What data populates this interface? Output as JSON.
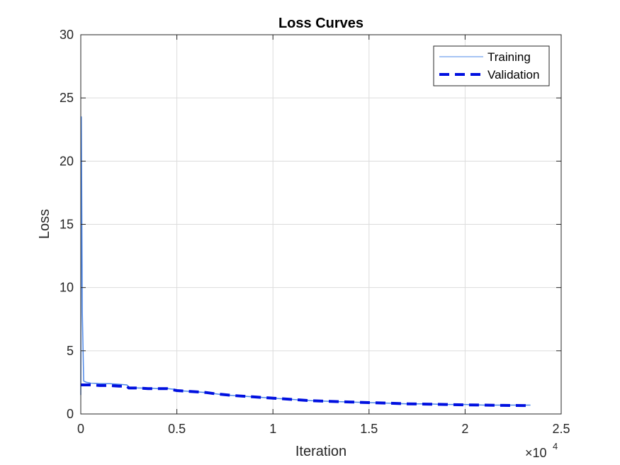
{
  "chart_data": {
    "type": "line",
    "title": "Loss Curves",
    "xlabel": "Iteration",
    "ylabel": "Loss",
    "x_exponent_label": "×10",
    "x_exponent_power": "4",
    "xlim": [
      0,
      25000
    ],
    "ylim": [
      0,
      30
    ],
    "x_ticks": [
      0,
      5000,
      10000,
      15000,
      20000,
      25000
    ],
    "x_tick_labels": [
      "0",
      "0.5",
      "1",
      "1.5",
      "2",
      "2.5"
    ],
    "y_ticks": [
      0,
      5,
      10,
      15,
      20,
      25,
      30
    ],
    "y_tick_labels": [
      "0",
      "5",
      "10",
      "15",
      "20",
      "25",
      "30"
    ],
    "grid": true,
    "legend_position": "top-right",
    "series": [
      {
        "name": "Training",
        "color": "#4d88e8",
        "style": "solid-thin",
        "x": [
          0,
          30,
          80,
          150,
          300,
          500,
          1000,
          1500,
          2000,
          2400,
          2500,
          3000,
          3500,
          4000,
          4500,
          4900,
          5000,
          5500,
          6000,
          6500,
          7000,
          7500,
          8000,
          9000,
          10000,
          11000,
          12000,
          13000,
          14000,
          15000,
          16000,
          17000,
          18000,
          19000,
          20000,
          21000,
          22000,
          23000,
          23400
        ],
        "y": [
          1.5,
          23.5,
          8.0,
          2.6,
          2.5,
          2.45,
          2.4,
          2.4,
          2.35,
          2.3,
          2.1,
          2.05,
          2.05,
          2.0,
          2.0,
          1.95,
          1.85,
          1.8,
          1.75,
          1.7,
          1.6,
          1.5,
          1.45,
          1.35,
          1.25,
          1.15,
          1.05,
          1.0,
          0.95,
          0.9,
          0.85,
          0.8,
          0.8,
          0.75,
          0.75,
          0.7,
          0.7,
          0.7,
          0.7
        ]
      },
      {
        "name": "Validation",
        "color": "#0010e0",
        "style": "dashed-thick",
        "x": [
          0,
          500,
          1000,
          1500,
          2000,
          2400,
          2500,
          3000,
          3500,
          4000,
          4500,
          5000,
          5500,
          6000,
          6500,
          7000,
          8000,
          9000,
          10000,
          11000,
          12000,
          13000,
          14000,
          15000,
          16000,
          17000,
          18000,
          19000,
          20000,
          21000,
          22000,
          23000,
          23400
        ],
        "y": [
          2.3,
          2.3,
          2.25,
          2.25,
          2.2,
          2.2,
          2.05,
          2.05,
          2.0,
          2.0,
          2.0,
          1.85,
          1.8,
          1.75,
          1.7,
          1.6,
          1.45,
          1.35,
          1.25,
          1.15,
          1.05,
          1.0,
          0.95,
          0.9,
          0.85,
          0.8,
          0.78,
          0.75,
          0.72,
          0.7,
          0.68,
          0.67,
          0.66
        ]
      }
    ]
  }
}
